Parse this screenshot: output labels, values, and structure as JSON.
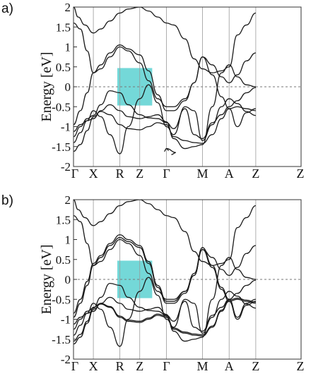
{
  "chart_data": [
    {
      "type": "line",
      "panel_label": "a)",
      "ylabel": "Energy [eV]",
      "ylim": [
        -2,
        2
      ],
      "yticks": [
        2,
        1.5,
        1,
        0.5,
        0,
        -0.5,
        -1,
        -1.5,
        -2
      ],
      "ytick_labels": [
        "2",
        "1.5",
        "1",
        "0.5",
        "0",
        "-0.5",
        "-1",
        "-1.5",
        "-2"
      ],
      "k_points": [
        "Γ",
        "X",
        "R",
        "Z",
        "Γ",
        "M",
        "A",
        "Z"
      ],
      "k_positions": [
        0,
        0.0872,
        0.2038,
        0.2911,
        0.4086,
        0.5667,
        0.6839,
        0.8009
      ],
      "x_max": 1.0,
      "fermi_level": 0,
      "highlight": {
        "x": [
          0.1925,
          0.3458
        ],
        "y": [
          -0.47,
          0.47
        ],
        "color": "#74d8d8"
      },
      "line_color": "#1a1a1a",
      "bands": [
        {
          "x": [
            0,
            0.03,
            0.06,
            0.0872,
            0.12,
            0.16,
            0.2038,
            0.24,
            0.2911,
            0.33,
            0.37,
            0.4086,
            0.44,
            0.49,
            0.53,
            0.5667,
            0.61,
            0.65,
            0.6839,
            0.72,
            0.76,
            0.8009
          ],
          "y": [
            -1.62,
            -1.45,
            -1.1,
            -0.75,
            -0.62,
            -0.7,
            -0.95,
            -1.05,
            -1.08,
            -1.0,
            -0.9,
            -0.95,
            -1.25,
            -1.35,
            -1.4,
            -1.42,
            -1.2,
            -0.8,
            -0.55,
            -0.5,
            -0.55,
            -0.6
          ]
        },
        {
          "x": [
            0,
            0.03,
            0.06,
            0.0872,
            0.12,
            0.16,
            0.2038,
            0.24,
            0.2911,
            0.33,
            0.37,
            0.4086,
            0.44,
            0.49,
            0.53,
            0.5667,
            0.61,
            0.65,
            0.6839,
            0.72,
            0.76,
            0.8009
          ],
          "y": [
            -1.4,
            -1.15,
            -0.85,
            -0.6,
            -0.75,
            -1.2,
            -1.68,
            -1.0,
            -0.3,
            0.05,
            -0.4,
            -1.0,
            -1.2,
            -0.5,
            -0.6,
            -1.35,
            -0.95,
            -0.5,
            -0.3,
            -0.42,
            -0.62,
            -0.72
          ]
        },
        {
          "x": [
            0,
            0.03,
            0.06,
            0.0872,
            0.12,
            0.16,
            0.2038,
            0.24,
            0.2911,
            0.33,
            0.37,
            0.4086,
            0.44,
            0.49,
            0.53,
            0.5667,
            0.61,
            0.65,
            0.6839,
            0.72,
            0.76,
            0.8009
          ],
          "y": [
            -1.25,
            -1.0,
            -0.8,
            -0.72,
            -0.45,
            -0.1,
            -0.15,
            -0.45,
            -0.7,
            -0.78,
            -0.8,
            -0.9,
            -1.05,
            -0.55,
            -1.2,
            -1.3,
            -0.9,
            -0.7,
            -0.5,
            -0.35,
            -0.15,
            -0.02
          ]
        },
        {
          "x": [
            0,
            0.03,
            0.06,
            0.0872,
            0.12,
            0.16,
            0.2038,
            0.24,
            0.2911,
            0.33,
            0.37,
            0.4086,
            0.44,
            0.49,
            0.53,
            0.5667,
            0.61,
            0.65,
            0.6839,
            0.72,
            0.76,
            0.8009
          ],
          "y": [
            -1.12,
            -0.95,
            -0.85,
            -0.8,
            -0.6,
            -0.45,
            -0.6,
            -0.75,
            -0.8,
            -0.75,
            -0.7,
            -0.88,
            -1.3,
            -1.55,
            -1.5,
            -1.45,
            -0.5,
            0.35,
            0.55,
            0.25,
            0.05,
            0.0
          ]
        },
        {
          "x": [
            0,
            0.03,
            0.06,
            0.0872,
            0.12,
            0.16,
            0.2038,
            0.24,
            0.2911,
            0.33,
            0.37,
            0.4086,
            0.44,
            0.49,
            0.53,
            0.5667,
            0.61,
            0.65,
            0.6839,
            0.72,
            0.76,
            0.8009
          ],
          "y": [
            -0.95,
            -0.6,
            -0.15,
            0.35,
            0.55,
            0.85,
            1.05,
            0.95,
            0.8,
            0.4,
            -0.2,
            -0.6,
            -0.6,
            -0.35,
            0.1,
            0.75,
            0.3,
            -0.25,
            -0.55,
            -1.0,
            -0.65,
            -0.55
          ]
        },
        {
          "x": [
            0,
            0.03,
            0.06,
            0.0872,
            0.12,
            0.16,
            0.2038,
            0.24,
            0.2911,
            0.33,
            0.37,
            0.4086,
            0.44,
            0.49,
            0.53,
            0.5667,
            0.61,
            0.65,
            0.6839,
            0.72,
            0.76,
            0.8009
          ],
          "y": [
            1.6,
            1.45,
            0.9,
            0.35,
            0.45,
            0.75,
            1.0,
            0.9,
            0.6,
            0.15,
            -0.3,
            -0.5,
            -0.5,
            -0.3,
            0.1,
            0.75,
            0.55,
            0.25,
            0.1,
            0.3,
            0.65,
            0.85
          ]
        },
        {
          "x": [
            0,
            0.02,
            0.05,
            0.0872,
            0.12,
            0.16,
            0.2038,
            0.24,
            0.2911,
            0.33,
            0.37,
            0.4086,
            0.44,
            0.49,
            0.53,
            0.5667,
            0.61,
            0.65,
            0.6839,
            0.72,
            0.76,
            0.8009
          ],
          "y": [
            2.0,
            1.75,
            1.55,
            1.35,
            1.45,
            1.65,
            1.85,
            1.95,
            2.0,
            1.9,
            1.75,
            1.6,
            1.55,
            1.2,
            0.7,
            0.45,
            0.35,
            0.4,
            0.5,
            1.3,
            1.55,
            1.85
          ]
        },
        {
          "x": [
            0.43,
            0.45,
            0.4086,
            0.3986,
            0.4086,
            0.4186
          ],
          "y": [
            -1.7,
            -1.65,
            -1.55,
            -1.62,
            -1.55,
            -1.6
          ]
        }
      ]
    },
    {
      "type": "line",
      "panel_label": "b)",
      "ylabel": "Energy [eV]",
      "ylim": [
        -2,
        2
      ],
      "yticks": [
        2,
        1.5,
        1,
        0.5,
        0,
        -0.5,
        -1,
        -1.5,
        -2
      ],
      "ytick_labels": [
        "2",
        "1.5",
        "1",
        "0.5",
        "0",
        "-0.5",
        "-1",
        "-1.5",
        "-2"
      ],
      "k_points": [
        "Γ",
        "X",
        "R",
        "Z",
        "Γ",
        "M",
        "A",
        "Z"
      ],
      "k_positions": [
        0,
        0.0872,
        0.2038,
        0.2911,
        0.4086,
        0.5667,
        0.6839,
        0.8009
      ],
      "x_max": 1.0,
      "fermi_level": 0,
      "highlight": {
        "x": [
          0.1925,
          0.3458
        ],
        "y": [
          -0.47,
          0.47
        ],
        "color": "#74d8d8"
      },
      "line_color": "#1a1a1a",
      "bands": [
        {
          "x": [
            0,
            0.03,
            0.06,
            0.0872,
            0.12,
            0.16,
            0.2038,
            0.24,
            0.2911,
            0.33,
            0.37,
            0.4086,
            0.44,
            0.49,
            0.53,
            0.5667,
            0.61,
            0.65,
            0.6839,
            0.72,
            0.76,
            0.8009
          ],
          "y": [
            -1.62,
            -1.45,
            -1.1,
            -0.75,
            -0.62,
            -0.7,
            -0.95,
            -1.05,
            -1.08,
            -1.0,
            -0.9,
            -0.95,
            -1.25,
            -1.35,
            -1.4,
            -1.42,
            -1.2,
            -0.8,
            -0.55,
            -0.5,
            -0.55,
            -0.6
          ]
        },
        {
          "x": [
            0,
            0.03,
            0.06,
            0.0872,
            0.12,
            0.16,
            0.2038,
            0.24,
            0.2911,
            0.33,
            0.37,
            0.4086,
            0.44,
            0.49,
            0.53,
            0.5667,
            0.61,
            0.65,
            0.6839,
            0.72,
            0.76,
            0.8009
          ],
          "y": [
            -1.55,
            -1.38,
            -1.05,
            -0.7,
            -0.6,
            -0.68,
            -0.92,
            -1.02,
            -1.05,
            -0.97,
            -0.87,
            -0.92,
            -1.22,
            -1.32,
            -1.37,
            -1.39,
            -1.17,
            -0.77,
            -0.52,
            -0.47,
            -0.52,
            -0.57
          ]
        },
        {
          "x": [
            0,
            0.03,
            0.06,
            0.0872,
            0.12,
            0.16,
            0.2038,
            0.24,
            0.2911,
            0.33,
            0.37,
            0.4086,
            0.44,
            0.49,
            0.53,
            0.5667,
            0.61,
            0.65,
            0.6839,
            0.72,
            0.76,
            0.8009
          ],
          "y": [
            -1.4,
            -1.15,
            -0.85,
            -0.6,
            -0.75,
            -1.2,
            -1.68,
            -1.0,
            -0.3,
            0.05,
            -0.4,
            -1.0,
            -1.2,
            -0.5,
            -0.6,
            -1.35,
            -0.95,
            -0.5,
            -0.3,
            -0.42,
            -0.62,
            -0.72
          ]
        },
        {
          "x": [
            0,
            0.03,
            0.06,
            0.0872,
            0.12,
            0.16,
            0.2038,
            0.24,
            0.2911,
            0.33,
            0.37,
            0.4086,
            0.44,
            0.49,
            0.53,
            0.5667,
            0.61,
            0.65,
            0.6839,
            0.72,
            0.76,
            0.8009
          ],
          "y": [
            -1.25,
            -1.0,
            -0.8,
            -0.72,
            -0.45,
            -0.1,
            -0.15,
            -0.45,
            -0.7,
            -0.78,
            -0.8,
            -0.9,
            -1.05,
            -0.55,
            -1.2,
            -1.3,
            -0.9,
            -0.7,
            -0.5,
            -0.35,
            -0.15,
            -0.02
          ]
        },
        {
          "x": [
            0,
            0.03,
            0.06,
            0.0872,
            0.12,
            0.16,
            0.2038,
            0.24,
            0.2911,
            0.33,
            0.37,
            0.4086,
            0.44,
            0.49,
            0.53,
            0.5667,
            0.61,
            0.65,
            0.6839,
            0.72,
            0.76,
            0.8009
          ],
          "y": [
            -1.12,
            -0.95,
            -0.85,
            -0.8,
            -0.6,
            -0.45,
            -0.6,
            -0.75,
            -0.8,
            -0.75,
            -0.7,
            -0.88,
            -1.3,
            -1.55,
            -1.5,
            -1.45,
            -0.5,
            0.35,
            0.55,
            0.25,
            0.05,
            0.0
          ]
        },
        {
          "x": [
            0,
            0.03,
            0.06,
            0.0872,
            0.12,
            0.16,
            0.2038,
            0.24,
            0.2911,
            0.33,
            0.37,
            0.4086,
            0.44,
            0.49,
            0.53,
            0.5667,
            0.61,
            0.65,
            0.6839,
            0.72,
            0.76,
            0.8009
          ],
          "y": [
            -0.95,
            -0.6,
            -0.15,
            0.35,
            0.55,
            0.85,
            1.05,
            0.95,
            0.8,
            0.4,
            -0.2,
            -0.6,
            -0.6,
            -0.35,
            0.1,
            0.75,
            0.3,
            -0.25,
            -0.55,
            -1.0,
            -0.65,
            -0.55
          ]
        },
        {
          "x": [
            0,
            0.03,
            0.06,
            0.0872,
            0.12,
            0.16,
            0.2038,
            0.24,
            0.2911,
            0.33,
            0.37,
            0.4086,
            0.44,
            0.49,
            0.53,
            0.5667,
            0.61,
            0.65,
            0.6839,
            0.72,
            0.76,
            0.8009
          ],
          "y": [
            -0.85,
            -0.5,
            -0.05,
            0.4,
            0.6,
            0.9,
            1.12,
            1.0,
            0.85,
            0.45,
            -0.15,
            -0.55,
            -0.55,
            -0.3,
            0.15,
            0.8,
            0.35,
            -0.2,
            -0.5,
            -0.95,
            -0.6,
            -0.5
          ]
        },
        {
          "x": [
            0,
            0.03,
            0.06,
            0.0872,
            0.12,
            0.16,
            0.2038,
            0.24,
            0.2911,
            0.33,
            0.37,
            0.4086,
            0.44,
            0.49,
            0.53,
            0.5667,
            0.61,
            0.65,
            0.6839,
            0.72,
            0.76,
            0.8009
          ],
          "y": [
            1.6,
            1.45,
            0.9,
            0.35,
            0.45,
            0.75,
            1.0,
            0.9,
            0.6,
            0.15,
            -0.3,
            -0.5,
            -0.5,
            -0.3,
            0.1,
            0.75,
            0.55,
            0.25,
            0.1,
            0.3,
            0.65,
            0.85
          ]
        },
        {
          "x": [
            0,
            0.02,
            0.05,
            0.0872,
            0.12,
            0.16,
            0.2038,
            0.24,
            0.2911,
            0.33,
            0.37,
            0.4086,
            0.44,
            0.49,
            0.53,
            0.5667,
            0.61,
            0.65,
            0.6839,
            0.72,
            0.76,
            0.8009
          ],
          "y": [
            2.0,
            1.75,
            1.55,
            1.35,
            1.45,
            1.65,
            1.85,
            1.95,
            2.0,
            1.9,
            1.75,
            1.6,
            1.55,
            1.2,
            0.7,
            0.45,
            0.35,
            0.4,
            0.5,
            1.3,
            1.55,
            1.85
          ]
        }
      ]
    }
  ]
}
